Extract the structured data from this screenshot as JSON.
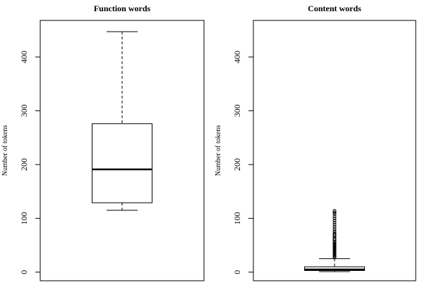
{
  "chart_data": [
    {
      "type": "box",
      "title": "Function words",
      "ylabel": "Number of tokens",
      "ylim": [
        -16,
        468
      ],
      "yticks": [
        0,
        100,
        200,
        300,
        400
      ],
      "box": {
        "min": 115,
        "q1": 129,
        "median": 191,
        "q3": 276,
        "max": 447,
        "outliers": []
      }
    },
    {
      "type": "box",
      "title": "Content words",
      "ylabel": "Number of tokens",
      "ylim": [
        -16,
        468
      ],
      "yticks": [
        0,
        100,
        200,
        300,
        400
      ],
      "box": {
        "min": 1,
        "q1": 3,
        "median": 5,
        "q3": 10,
        "max": 25,
        "outliers": [
          27,
          29,
          31,
          33,
          35,
          37,
          39,
          41,
          43,
          45,
          47,
          49,
          51,
          53,
          55,
          57,
          60,
          62,
          65,
          68,
          70,
          73,
          76,
          80,
          84,
          88,
          92,
          96,
          100,
          104,
          108,
          111,
          114
        ]
      }
    }
  ]
}
